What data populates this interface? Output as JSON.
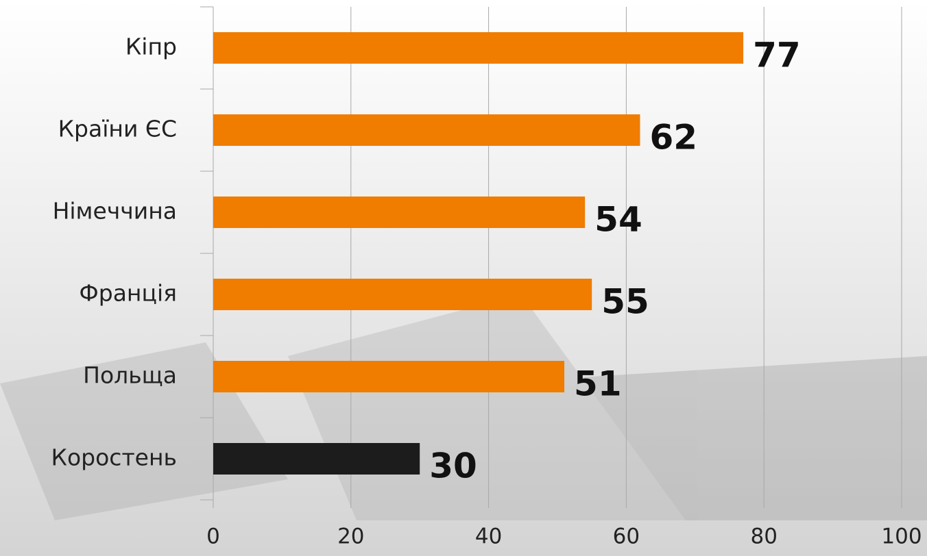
{
  "chart_data": {
    "type": "hbar",
    "categories": [
      "Кіпр",
      "Країни ЄС",
      "Німеччина",
      "Франція",
      "Польща",
      "Коростень"
    ],
    "values": [
      77,
      62,
      54,
      55,
      51,
      30
    ],
    "colors": [
      "#f07c00",
      "#f07c00",
      "#f07c00",
      "#f07c00",
      "#f07c00",
      "#1c1c1c"
    ],
    "xlim": [
      0,
      100
    ],
    "xticks": [
      0,
      20,
      40,
      60,
      80,
      100
    ],
    "grid": true
  }
}
